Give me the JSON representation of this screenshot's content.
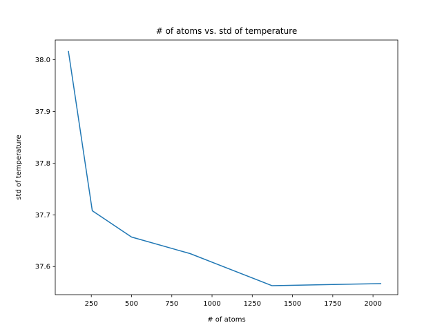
{
  "chart_data": {
    "type": "line",
    "title": "# of atoms vs. std of temperature",
    "xlabel": "# of atoms",
    "ylabel": "std of temperature",
    "xlim": [
      26,
      2154
    ],
    "ylim": [
      37.5456,
      38.0381
    ],
    "xticks": [
      250,
      500,
      750,
      1000,
      1250,
      1500,
      1750,
      2000
    ],
    "xtick_labels": [
      "250",
      "500",
      "750",
      "1000",
      "1250",
      "1500",
      "1750",
      "2000"
    ],
    "yticks": [
      37.6,
      37.7,
      37.8,
      37.9,
      38.0
    ],
    "ytick_labels": [
      "37.6",
      "37.7",
      "37.8",
      "37.9",
      "38.0"
    ],
    "grid": false,
    "legend": "none",
    "series": [
      {
        "color": "#1f77b4",
        "x": [
          108,
          256,
          500,
          864,
          1372,
          2048
        ],
        "y": [
          38.016,
          37.708,
          37.657,
          37.625,
          37.563,
          37.567
        ]
      }
    ]
  }
}
